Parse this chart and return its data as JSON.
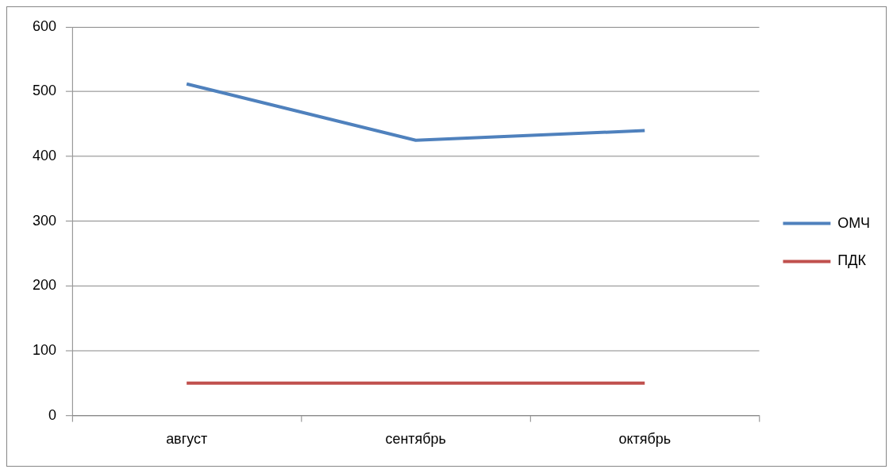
{
  "chart_data": {
    "type": "line",
    "categories": [
      "август",
      "сентябрь",
      "октябрь"
    ],
    "series": [
      {
        "name": "ОМЧ",
        "color": "#4f81bd",
        "values": [
          512,
          425,
          440
        ]
      },
      {
        "name": "ПДК",
        "color": "#c0504d",
        "values": [
          50,
          50,
          50
        ]
      }
    ],
    "ylim": [
      0,
      600
    ],
    "yticks": [
      0,
      100,
      200,
      300,
      400,
      500,
      600
    ],
    "grid": "y",
    "legend": "right",
    "marker": "none",
    "line_style": "solid"
  }
}
